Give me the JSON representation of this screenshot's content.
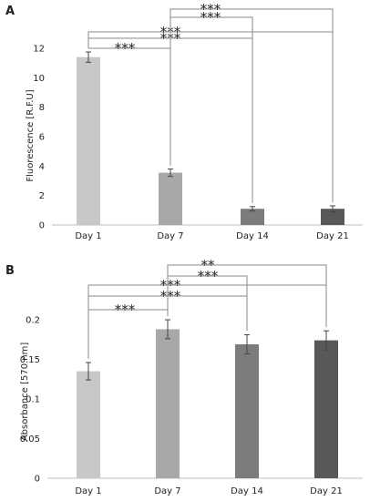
{
  "chart_data": [
    {
      "type": "bar",
      "panel": "A",
      "title": "",
      "xlabel": "",
      "ylabel": "Fluorescence [R.F.U]",
      "categories": [
        "Day 1",
        "Day 7",
        "Day 14",
        "Day 21"
      ],
      "values": [
        11.4,
        3.55,
        1.1,
        1.1
      ],
      "errors": [
        0.35,
        0.25,
        0.15,
        0.2
      ],
      "colors": [
        "#c8c8c8",
        "#a8a8a8",
        "#7c7c7c",
        "#585858"
      ],
      "ylim": [
        0,
        12
      ],
      "yticks": [
        "0",
        "2",
        "4",
        "6",
        "8",
        "10",
        "12"
      ],
      "grid": false,
      "significance": [
        {
          "from": 0,
          "to": 1,
          "label": "***"
        },
        {
          "from": 0,
          "to": 2,
          "label": "***"
        },
        {
          "from": 0,
          "to": 3,
          "label": "***"
        },
        {
          "from": 1,
          "to": 2,
          "label": "***"
        },
        {
          "from": 1,
          "to": 3,
          "label": "***"
        }
      ]
    },
    {
      "type": "bar",
      "panel": "B",
      "title": "",
      "xlabel": "",
      "ylabel": "Absorbance [570 nm]",
      "categories": [
        "Day 1",
        "Day 7",
        "Day 14",
        "Day 21"
      ],
      "values": [
        0.135,
        0.188,
        0.169,
        0.174
      ],
      "errors": [
        0.011,
        0.012,
        0.012,
        0.012
      ],
      "colors": [
        "#c8c8c8",
        "#a8a8a8",
        "#7c7c7c",
        "#585858"
      ],
      "ylim": [
        0,
        0.2
      ],
      "yticks": [
        "0",
        "0.05",
        "0.1",
        "0.15",
        "0.2"
      ],
      "grid": false,
      "significance": [
        {
          "from": 0,
          "to": 1,
          "label": "***"
        },
        {
          "from": 0,
          "to": 2,
          "label": "***"
        },
        {
          "from": 0,
          "to": 3,
          "label": "***"
        },
        {
          "from": 1,
          "to": 2,
          "label": "***"
        },
        {
          "from": 1,
          "to": 3,
          "label": "**"
        }
      ]
    }
  ]
}
